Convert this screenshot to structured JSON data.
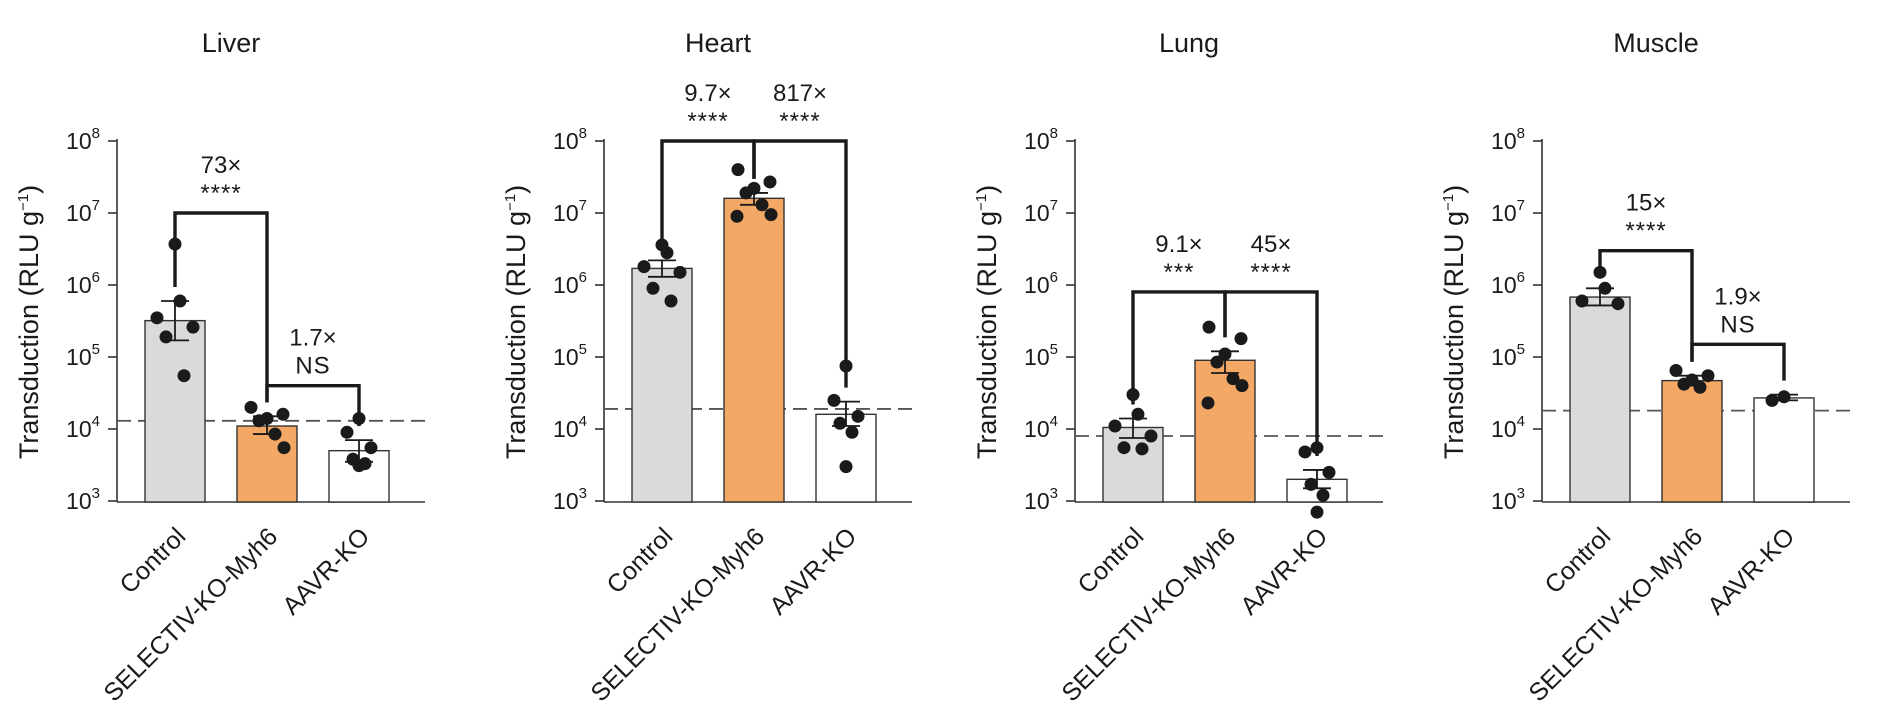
{
  "figure": {
    "panel_label": ""
  },
  "colors": {
    "control": "#d9dadb",
    "selectiv": "#f4a866",
    "aavr": "#ffffff",
    "ink": "#1a1a1a"
  },
  "ylabel_text": "Transduction (RLU g",
  "ylabel_exp": "−1",
  "ylabel_close": ")",
  "tick_base": "10",
  "chart_data": [
    {
      "type": "bar",
      "title": "Liver",
      "yscale": "log",
      "ylim": [
        1000,
        100000000
      ],
      "yticks": [
        1000,
        10000,
        100000,
        1000000,
        10000000,
        100000000
      ],
      "ytick_exponents": [
        "3",
        "4",
        "5",
        "6",
        "7",
        "8"
      ],
      "categories": [
        "Control",
        "SELECTIV-KO-Myh6",
        "AAVR-KO"
      ],
      "values": [
        320000,
        11000,
        5000
      ],
      "sem_upper": [
        600000,
        15000,
        7000
      ],
      "sem_lower": [
        170000,
        8500,
        3500
      ],
      "points": [
        [
          3700000,
          600000,
          350000,
          260000,
          190000,
          55000
        ],
        [
          20000,
          16000,
          14000,
          13000,
          8500,
          5500
        ],
        [
          14000,
          9000,
          5500,
          3800,
          3300,
          3100
        ]
      ],
      "threshold": 13000,
      "comparisons": [
        {
          "from": 0,
          "to": 1,
          "fold": "73×",
          "sig": "****",
          "level": 10000000
        },
        {
          "from": 1,
          "to": 2,
          "fold": "1.7×",
          "sig": "NS",
          "level": 40000
        }
      ]
    },
    {
      "type": "bar",
      "title": "Heart",
      "yscale": "log",
      "ylim": [
        1000,
        100000000
      ],
      "yticks": [
        1000,
        10000,
        100000,
        1000000,
        10000000,
        100000000
      ],
      "ytick_exponents": [
        "3",
        "4",
        "5",
        "6",
        "7",
        "8"
      ],
      "categories": [
        "Control",
        "SELECTIV-KO-Myh6",
        "AAVR-KO"
      ],
      "values": [
        1700000,
        16000000,
        16000
      ],
      "sem_upper": [
        2200000,
        19000000,
        24000
      ],
      "sem_lower": [
        1300000,
        13000000,
        11000
      ],
      "points": [
        [
          3600000,
          2800000,
          1800000,
          1500000,
          900000,
          600000
        ],
        [
          40000000,
          27000000,
          22000000,
          19000000,
          13000000,
          9500000,
          9000000
        ],
        [
          75000,
          25000,
          15000,
          12000,
          9000,
          3000
        ]
      ],
      "threshold": 19000,
      "comparisons": [
        {
          "from": 0,
          "to": 1,
          "fold": "9.7×",
          "sig": "****",
          "level": 100000000
        },
        {
          "from": 1,
          "to": 2,
          "fold": "817×",
          "sig": "****",
          "level": 100000000
        }
      ]
    },
    {
      "type": "bar",
      "title": "Lung",
      "yscale": "log",
      "ylim": [
        1000,
        100000000
      ],
      "yticks": [
        1000,
        10000,
        100000,
        1000000,
        10000000,
        100000000
      ],
      "ytick_exponents": [
        "3",
        "4",
        "5",
        "6",
        "7",
        "8"
      ],
      "categories": [
        "Control",
        "SELECTIV-KO-Myh6",
        "AAVR-KO"
      ],
      "values": [
        10500,
        90000,
        2000
      ],
      "sem_upper": [
        14000,
        120000,
        2700
      ],
      "sem_lower": [
        7500,
        60000,
        1500
      ],
      "points": [
        [
          30000,
          16000,
          11000,
          8000,
          5500,
          5300
        ],
        [
          260000,
          180000,
          110000,
          85000,
          50000,
          40000,
          23000
        ],
        [
          5500,
          4800,
          2500,
          1700,
          1200,
          700
        ]
      ],
      "threshold": 8000,
      "comparisons": [
        {
          "from": 0,
          "to": 1,
          "fold": "9.1×",
          "sig": "***",
          "level": 800000
        },
        {
          "from": 1,
          "to": 2,
          "fold": "45×",
          "sig": "****",
          "level": 800000
        }
      ]
    },
    {
      "type": "bar",
      "title": "Muscle",
      "yscale": "log",
      "ylim": [
        1000,
        100000000
      ],
      "yticks": [
        1000,
        10000,
        100000,
        1000000,
        10000000,
        100000000
      ],
      "ytick_exponents": [
        "3",
        "4",
        "5",
        "6",
        "7",
        "8"
      ],
      "categories": [
        "Control",
        "SELECTIV-KO-Myh6",
        "AAVR-KO"
      ],
      "values": [
        680000,
        47000,
        27000
      ],
      "sem_upper": [
        900000,
        55000,
        30000
      ],
      "sem_lower": [
        520000,
        40000,
        25000
      ],
      "points": [
        [
          1500000,
          900000,
          600000,
          550000
        ],
        [
          65000,
          55000,
          48000,
          42000,
          38000
        ],
        [
          28000,
          25000
        ]
      ],
      "threshold": 18000,
      "comparisons": [
        {
          "from": 0,
          "to": 1,
          "fold": "15×",
          "sig": "****",
          "level": 3000000
        },
        {
          "from": 1,
          "to": 2,
          "fold": "1.9×",
          "sig": "NS",
          "level": 150000
        }
      ]
    }
  ]
}
